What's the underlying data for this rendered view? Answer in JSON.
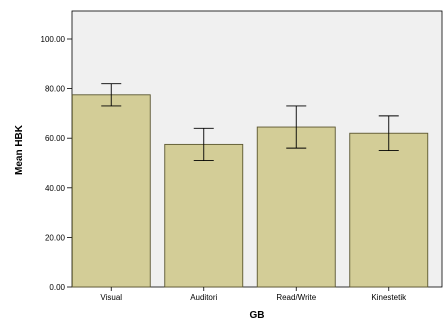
{
  "chart_data": {
    "type": "bar",
    "xlabel": "GB",
    "ylabel": "Mean HBK",
    "categories": [
      "Visual",
      "Auditori",
      "Read/Write",
      "Kinestetik"
    ],
    "values": [
      77.5,
      57.5,
      64.5,
      62.0
    ],
    "error_low": [
      73.0,
      51.0,
      56.0,
      55.0
    ],
    "error_high": [
      82.0,
      64.0,
      73.0,
      69.0
    ],
    "ylim": [
      0,
      110
    ],
    "yticks": [
      0,
      20,
      40,
      60,
      80,
      100
    ],
    "ytick_labels": [
      "0.00",
      "20.00",
      "40.00",
      "60.00",
      "80.00",
      "100.00"
    ],
    "grid": false,
    "colors": {
      "bar_fill": "#d3cd97",
      "bar_stroke": "#5b5630",
      "plot_bg": "#f0f0f0",
      "axis": "#000000"
    }
  }
}
